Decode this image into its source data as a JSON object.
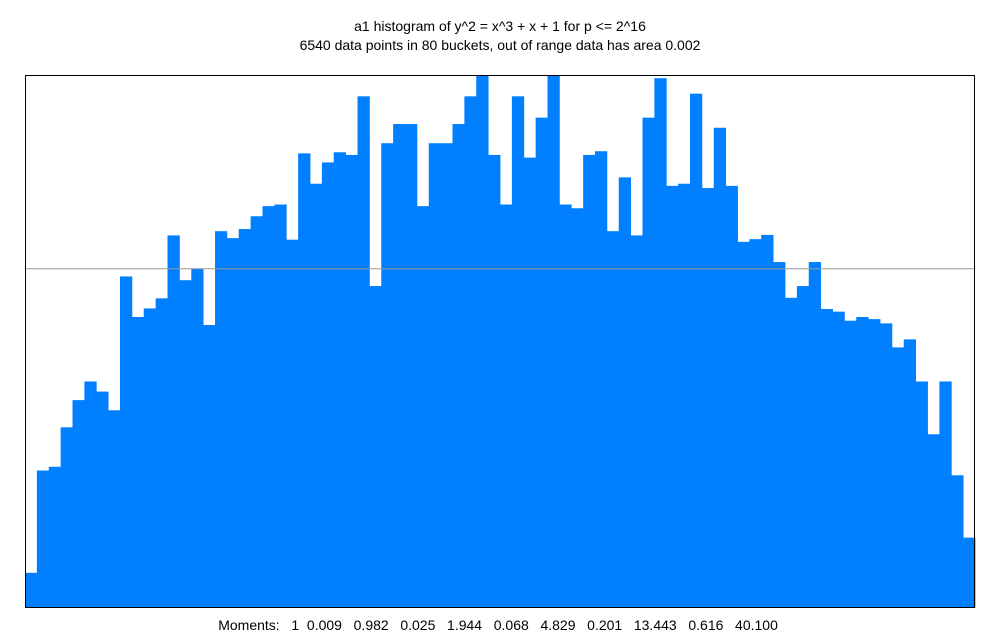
{
  "chart_data": {
    "type": "bar",
    "title": "a1 histogram of y^2 = x^3 + x + 1 for p <= 2^16",
    "subtitle": "6540 data points in 80 buckets, out of range data has area 0.002",
    "bar_color": "#0080ff",
    "reference_line_color": "#999999",
    "reference_line_value": 0.6366,
    "ylim": [
      0,
      1
    ],
    "grid": false,
    "buckets": 80,
    "values": [
      0.066,
      0.258,
      0.265,
      0.339,
      0.39,
      0.425,
      0.406,
      0.371,
      0.622,
      0.546,
      0.562,
      0.581,
      0.699,
      0.615,
      0.637,
      0.531,
      0.707,
      0.694,
      0.711,
      0.735,
      0.754,
      0.757,
      0.691,
      0.853,
      0.796,
      0.836,
      0.855,
      0.85,
      0.96,
      0.604,
      0.872,
      0.908,
      0.908,
      0.754,
      0.872,
      0.872,
      0.908,
      0.96,
      1.0,
      0.85,
      0.757,
      0.96,
      0.845,
      0.92,
      1.0,
      0.757,
      0.75,
      0.85,
      0.857,
      0.707,
      0.808,
      0.699,
      0.92,
      0.994,
      0.792,
      0.796,
      0.965,
      0.788,
      0.901,
      0.792,
      0.687,
      0.692,
      0.7,
      0.649,
      0.582,
      0.604,
      0.649,
      0.561,
      0.556,
      0.539,
      0.546,
      0.542,
      0.534,
      0.489,
      0.504,
      0.425,
      0.326,
      0.425,
      0.249,
      0.132
    ],
    "moments_label": "Moments:",
    "moments": [
      "1",
      "0.009",
      "0.982",
      "0.025",
      "1.944",
      "0.068",
      "4.829",
      "0.201",
      "13.443",
      "0.616",
      "40.100"
    ]
  }
}
